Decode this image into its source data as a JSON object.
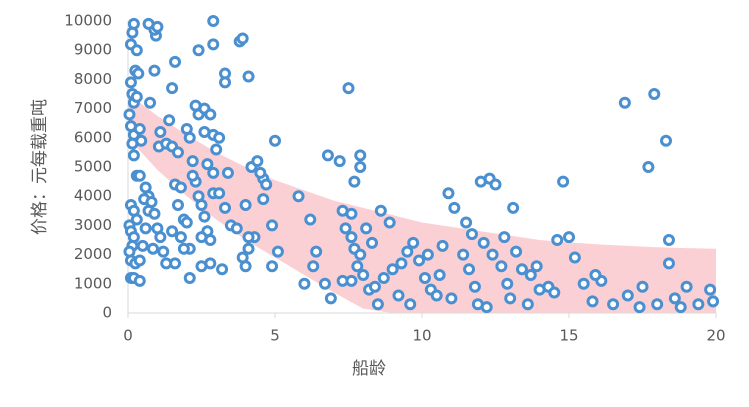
{
  "chart_data": {
    "type": "scatter",
    "xlabel": "船龄",
    "ylabel": "价格：元每载重吨",
    "xlim": [
      0,
      20
    ],
    "ylim": [
      0,
      10000
    ],
    "xticks": [
      0,
      5,
      10,
      15,
      20
    ],
    "yticks": [
      0,
      1000,
      2000,
      3000,
      4000,
      5000,
      6000,
      7000,
      8000,
      9000,
      10000
    ],
    "grid": false,
    "band": {
      "color": "#fbd0d4",
      "x": [
        0,
        1,
        2,
        3,
        4,
        5,
        6,
        7,
        8,
        9,
        10,
        11,
        12,
        13,
        14,
        15,
        16,
        17,
        18,
        19,
        20
      ],
      "upper": [
        7500,
        6750,
        6100,
        5500,
        5000,
        4550,
        4200,
        3850,
        3600,
        3350,
        3100,
        2950,
        2800,
        2650,
        2500,
        2420,
        2350,
        2300,
        2250,
        2220,
        2200
      ],
      "lower": [
        6000,
        4900,
        4000,
        3200,
        2500,
        1900,
        1300,
        700,
        150,
        0,
        0,
        0,
        0,
        0,
        0,
        0,
        0,
        0,
        0,
        0,
        0
      ]
    },
    "series": [
      {
        "color": "#4a8fd0",
        "x": [
          0.1,
          0.15,
          0.2,
          0.3,
          0.25,
          0.35,
          0.1,
          0.15,
          0.2,
          0.3,
          0.05,
          0.1,
          0.2,
          0.15,
          0.2,
          0.4,
          0.45,
          0.3,
          0.4,
          0.6,
          0.7,
          0.55,
          0.1,
          0.2,
          0.3,
          0.05,
          0.1,
          0.2,
          0.15,
          0.05,
          0.1,
          0.25,
          0.4,
          0.5,
          0.6,
          0.7,
          0.1,
          0.2,
          0.4,
          0.8,
          0.9,
          1.0,
          1.1,
          1.2,
          0.85,
          0.95,
          0.9,
          0.7,
          1.0,
          0.9,
          0.75,
          1.1,
          1.05,
          1.3,
          1.5,
          1.4,
          1.5,
          1.6,
          1.7,
          1.6,
          1.8,
          1.7,
          1.5,
          1.9,
          2.0,
          1.8,
          2.1,
          1.9,
          1.6,
          1.3,
          2.1,
          2.0,
          2.1,
          2.2,
          2.3,
          2.4,
          2.5,
          2.6,
          2.7,
          2.8,
          2.5,
          2.2,
          2.3,
          2.4,
          2.6,
          2.8,
          2.4,
          2.9,
          2.9,
          3.3,
          3.3,
          2.9,
          3.1,
          3.0,
          2.7,
          2.9,
          2.9,
          3.1,
          3.4,
          3.3,
          3.5,
          3.7,
          3.2,
          2.5,
          2.8,
          2.6,
          3.8,
          3.9,
          4.1,
          4.2,
          4.4,
          4.6,
          4.7,
          4.0,
          4.3,
          4.1,
          3.9,
          4.0,
          4.6,
          4.9,
          5.1,
          4.9,
          5.0,
          4.1,
          4.5,
          5.8,
          6.2,
          6.4,
          6.8,
          7.2,
          7.3,
          7.6,
          7.5,
          7.7,
          7.9,
          7.9,
          7.4,
          7.6,
          7.7,
          7.9,
          8.1,
          8.3,
          8.6,
          8.9,
          6.0,
          6.3,
          6.7,
          6.9,
          7.3,
          7.6,
          7.8,
          8.0,
          8.2,
          8.4,
          8.7,
          9.0,
          9.3,
          9.5,
          9.7,
          9.9,
          10.1,
          10.3,
          10.5,
          10.7,
          10.9,
          11.1,
          11.4,
          11.6,
          11.8,
          12.0,
          12.3,
          12.5,
          12.1,
          12.4,
          12.7,
          12.9,
          13.1,
          13.4,
          13.7,
          14.0,
          14.3,
          14.6,
          14.8,
          15.0,
          15.2,
          15.5,
          15.8,
          16.1,
          16.5,
          16.9,
          17.4,
          17.7,
          17.9,
          18.3,
          18.4,
          18.4,
          18.6,
          19.0,
          19.4,
          19.8,
          19.9,
          11.5,
          11.7,
          12.8,
          13.2,
          10.2,
          10.6,
          11.0,
          11.9,
          12.2,
          13.0,
          13.9,
          14.5,
          15.9,
          17.0,
          17.5,
          18.0,
          18.8,
          9.2,
          9.6,
          8.5,
          13.6
        ],
        "values": [
          9200,
          9600,
          9900,
          9000,
          8300,
          8200,
          7900,
          7500,
          7200,
          7400,
          6800,
          6400,
          6100,
          5800,
          5400,
          6300,
          5900,
          4700,
          4700,
          4300,
          4000,
          3900,
          3700,
          3500,
          3200,
          3000,
          2800,
          2600,
          2300,
          2100,
          1800,
          1700,
          1800,
          2300,
          2900,
          3500,
          1200,
          1200,
          1100,
          3800,
          3400,
          2900,
          2600,
          2100,
          2200,
          9500,
          9700,
          9900,
          9800,
          8300,
          7200,
          6200,
          5700,
          5800,
          5700,
          6600,
          7700,
          8600,
          5500,
          4400,
          4300,
          3700,
          2800,
          3200,
          3100,
          2600,
          2200,
          2200,
          1700,
          1700,
          1200,
          6300,
          6000,
          5200,
          4500,
          4000,
          3700,
          3300,
          2800,
          2500,
          2600,
          4700,
          7100,
          6800,
          7000,
          6800,
          9000,
          9200,
          10000,
          8200,
          7900,
          6100,
          6000,
          5600,
          5100,
          4800,
          4100,
          4100,
          4800,
          3600,
          3000,
          2900,
          1500,
          1600,
          1700,
          6200,
          9300,
          9400,
          8100,
          5000,
          5200,
          4600,
          4400,
          3700,
          2600,
          2200,
          1900,
          1600,
          3900,
          3000,
          2100,
          1600,
          5900,
          2600,
          4800,
          4000,
          3200,
          2100,
          5400,
          5200,
          3500,
          3400,
          7700,
          4500,
          5400,
          5000,
          2900,
          2600,
          2200,
          2000,
          2900,
          2400,
          3500,
          3100,
          1000,
          1600,
          1000,
          500,
          1100,
          1100,
          1600,
          1300,
          800,
          900,
          1200,
          1500,
          1700,
          2100,
          2400,
          1800,
          1200,
          800,
          600,
          2300,
          4100,
          3600,
          2000,
          1500,
          900,
          4500,
          4600,
          4400,
          2400,
          2000,
          1600,
          1000,
          3600,
          1500,
          1300,
          800,
          900,
          2500,
          4500,
          2600,
          1900,
          1000,
          400,
          1100,
          300,
          7200,
          200,
          5000,
          7500,
          5900,
          2500,
          1700,
          500,
          900,
          300,
          800,
          400,
          3100,
          2700,
          2600,
          2100,
          2000,
          1300,
          500,
          300,
          200,
          500,
          1600,
          700,
          1300,
          600,
          900,
          300,
          200,
          600,
          300,
          300,
          300
        ]
      }
    ]
  }
}
